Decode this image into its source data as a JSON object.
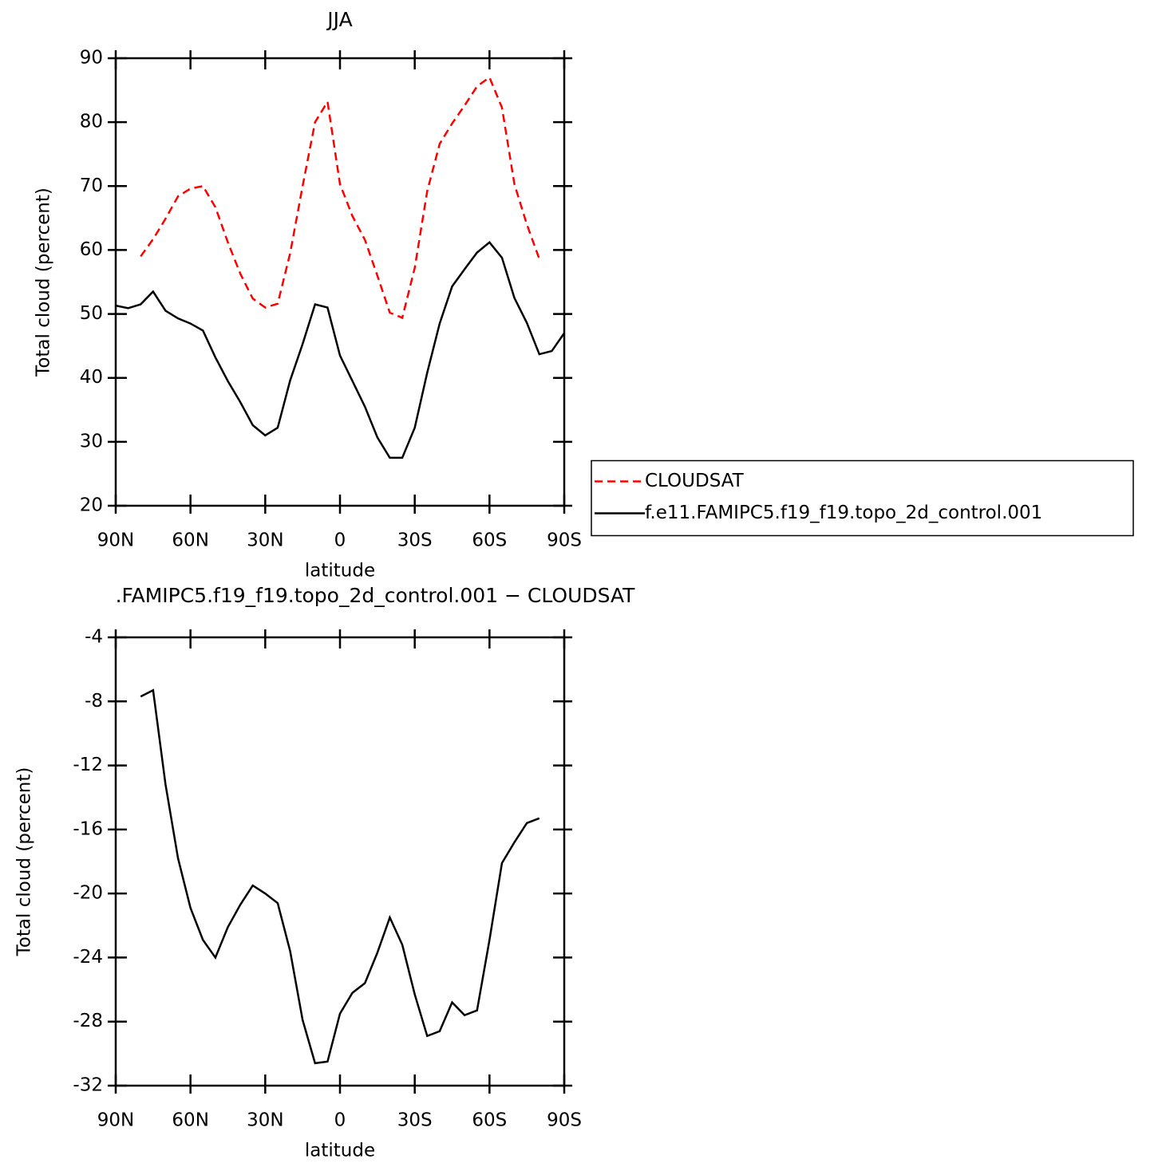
{
  "chart_data": [
    {
      "type": "line",
      "title": "JJA",
      "xlabel": "latitude",
      "ylabel": "Total cloud (percent)",
      "x": [
        90,
        85,
        80,
        75,
        70,
        65,
        60,
        55,
        50,
        45,
        40,
        35,
        30,
        25,
        20,
        15,
        10,
        5,
        0,
        -5,
        -10,
        -15,
        -20,
        -25,
        -30,
        -35,
        -40,
        -45,
        -50,
        -55,
        -60,
        -65,
        -70,
        -75,
        -80,
        -85,
        -90
      ],
      "series": [
        {
          "name": "CLOUDSAT",
          "color": "#ff0000",
          "line_style": "dashed",
          "values": [
            null,
            null,
            59.0,
            61.7,
            64.9,
            68.4,
            69.6,
            70.0,
            66.7,
            61.2,
            56.3,
            52.4,
            51.0,
            51.6,
            59.5,
            70.0,
            80.0,
            83.2,
            70.3,
            65.3,
            61.6,
            56.0,
            50.2,
            49.4,
            57.2,
            69.2,
            76.6,
            79.8,
            82.6,
            85.6,
            87.0,
            82.3,
            70.3,
            64.0,
            58.6,
            null,
            null
          ]
        },
        {
          "name": "f.e11.FAMIPC5.f19_f19.topo_2d_control.001",
          "color": "#000000",
          "line_style": "solid",
          "values": [
            51.3,
            50.9,
            51.5,
            53.5,
            50.5,
            49.3,
            48.5,
            47.4,
            43.2,
            39.5,
            36.2,
            32.6,
            31.0,
            32.2,
            39.6,
            45.3,
            51.5,
            51.0,
            43.5,
            39.5,
            35.5,
            30.7,
            27.5,
            27.5,
            32.2,
            40.8,
            48.5,
            54.3,
            57.0,
            59.6,
            61.2,
            58.8,
            52.5,
            48.6,
            43.7,
            44.2,
            47.0
          ]
        }
      ],
      "xlim": [
        90,
        -90
      ],
      "xticks": [
        {
          "value": 90,
          "label": "90N"
        },
        {
          "value": 60,
          "label": "60N"
        },
        {
          "value": 30,
          "label": "30N"
        },
        0,
        {
          "value": -30,
          "label": "30S"
        },
        {
          "value": -60,
          "label": "60S"
        },
        {
          "value": -90,
          "label": "90S"
        }
      ],
      "ylim": [
        20,
        90
      ],
      "yticks": [
        20,
        30,
        40,
        50,
        60,
        70,
        80,
        90
      ],
      "legend": "right"
    },
    {
      "type": "line",
      "title": ".FAMIPC5.f19_f19.topo_2d_control.001 − CLOUDSAT",
      "xlabel": "latitude",
      "ylabel": "Total cloud (percent)",
      "x": [
        90,
        85,
        80,
        75,
        70,
        65,
        60,
        55,
        50,
        45,
        40,
        35,
        30,
        25,
        20,
        15,
        10,
        5,
        0,
        -5,
        -10,
        -15,
        -20,
        -25,
        -30,
        -35,
        -40,
        -45,
        -50,
        -55,
        -60,
        -65,
        -70,
        -75,
        -80,
        -85,
        -90
      ],
      "series": [
        {
          "color": "#000000",
          "line_style": "solid",
          "values": [
            null,
            null,
            -7.7,
            -7.3,
            -13.2,
            -17.8,
            -20.9,
            -22.9,
            -24.0,
            -22.1,
            -20.7,
            -19.5,
            -20.0,
            -20.6,
            -23.6,
            -27.9,
            -30.6,
            -30.5,
            -27.5,
            -26.2,
            -25.6,
            -23.7,
            -21.5,
            -23.2,
            -26.3,
            -28.9,
            -28.6,
            -26.8,
            -27.6,
            -27.3,
            -22.9,
            -18.1,
            -16.8,
            -15.6,
            -15.3,
            null,
            null
          ]
        }
      ],
      "xlim": [
        90,
        -90
      ],
      "xticks": [
        {
          "value": 90,
          "label": "90N"
        },
        {
          "value": 60,
          "label": "60N"
        },
        {
          "value": 30,
          "label": "30N"
        },
        0,
        {
          "value": -30,
          "label": "30S"
        },
        {
          "value": -60,
          "label": "60S"
        },
        {
          "value": -90,
          "label": "90S"
        }
      ],
      "ylim": [
        -32,
        -4
      ],
      "yticks": [
        -32,
        -28,
        -24,
        -20,
        -16,
        -12,
        -8,
        -4
      ]
    }
  ]
}
